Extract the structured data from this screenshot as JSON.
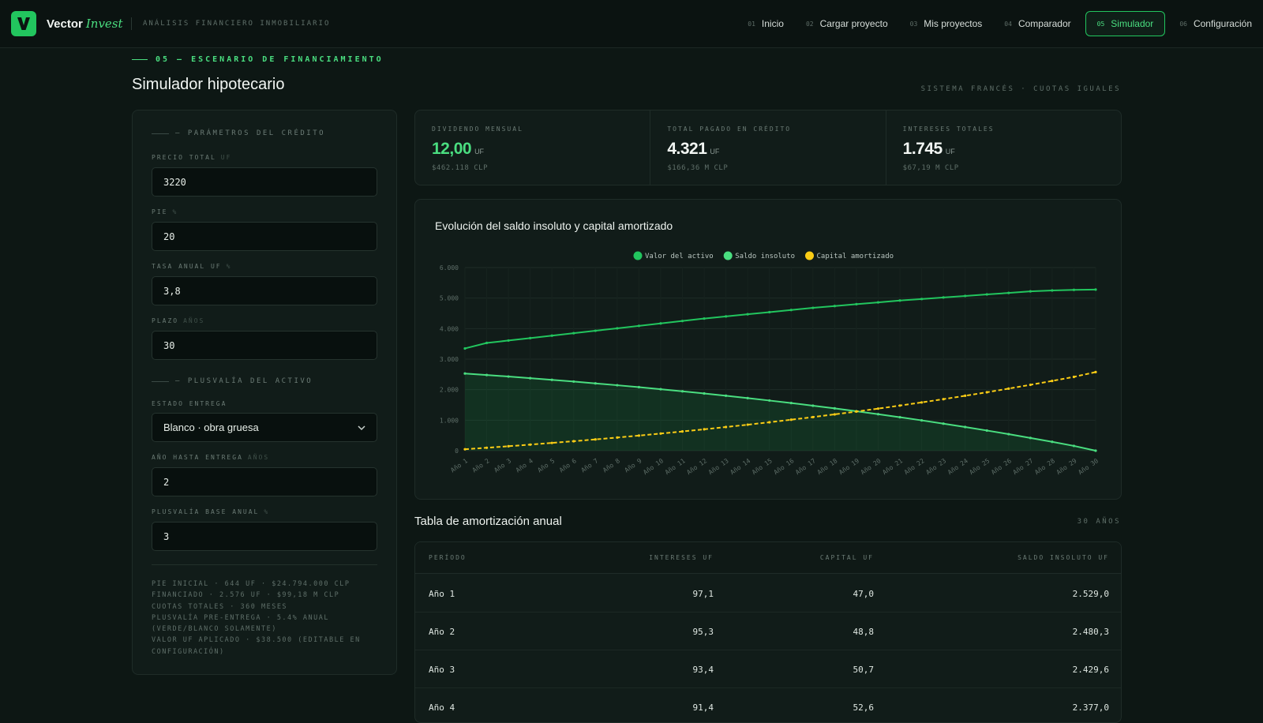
{
  "brand": {
    "name": "Vector",
    "script": "Invest",
    "subtitle": "ANÁLISIS FINANCIERO INMOBILIARIO"
  },
  "nav": [
    {
      "num": "01",
      "label": "Inicio",
      "active": false
    },
    {
      "num": "02",
      "label": "Cargar proyecto",
      "active": false
    },
    {
      "num": "03",
      "label": "Mis proyectos",
      "active": false
    },
    {
      "num": "04",
      "label": "Comparador",
      "active": false
    },
    {
      "num": "05",
      "label": "Simulador",
      "active": true
    },
    {
      "num": "06",
      "label": "Configuración",
      "active": false
    }
  ],
  "page": {
    "eyebrow": "05 — ESCENARIO DE FINANCIAMIENTO",
    "title": "Simulador hipotecario",
    "meta": "SISTEMA FRANCÉS · CUOTAS IGUALES"
  },
  "params": {
    "credit_heading": "— PARÁMETROS DEL CRÉDITO",
    "precio_label": "PRECIO TOTAL",
    "precio_unit": "UF",
    "precio_value": "3220",
    "pie_label": "PIE",
    "pie_unit": "%",
    "pie_value": "20",
    "tasa_label": "TASA ANUAL UF",
    "tasa_unit": "%",
    "tasa_value": "3,8",
    "plazo_label": "PLAZO",
    "plazo_unit": "AÑOS",
    "plazo_value": "30",
    "plusvalia_heading": "— PLUSVALÍA DEL ACTIVO",
    "estado_label": "ESTADO ENTREGA",
    "estado_value": "Blanco · obra gruesa",
    "anio_label": "AÑO HASTA ENTREGA",
    "anio_unit": "AÑOS",
    "anio_value": "2",
    "base_label": "PLUSVALÍA BASE ANUAL",
    "base_unit": "%",
    "base_value": "3",
    "summary": [
      "PIE INICIAL · 644 UF · $24.794.000 CLP",
      "FINANCIADO · 2.576 UF · $99,18 M CLP",
      "CUOTAS TOTALES · 360 MESES",
      "PLUSVALÍA PRE-ENTREGA · 5.4% ANUAL",
      "(VERDE/BLANCO SOLAMENTE)",
      "VALOR UF APLICADO · $38.500 (EDITABLE EN",
      "CONFIGURACIÓN)"
    ]
  },
  "stats": [
    {
      "label": "DIVIDENDO MENSUAL",
      "value": "12,00",
      "unit": "UF",
      "sub": "$462.118 CLP",
      "green": true
    },
    {
      "label": "TOTAL PAGADO EN CRÉDITO",
      "value": "4.321",
      "unit": "UF",
      "sub": "$166,36 M CLP",
      "green": false
    },
    {
      "label": "INTERESES TOTALES",
      "value": "1.745",
      "unit": "UF",
      "sub": "$67,19 M CLP",
      "green": false
    }
  ],
  "chart_data": {
    "type": "line",
    "title": "Evolución del saldo insoluto y capital amortizado",
    "legend_placement": "top-center",
    "grid": true,
    "ylim": [
      0,
      6000
    ],
    "yticks": [
      "0",
      "1.000",
      "2.000",
      "3.000",
      "4.000",
      "5.000",
      "6.000"
    ],
    "ytick_values": [
      0,
      1000,
      2000,
      3000,
      4000,
      5000,
      6000
    ],
    "categories": [
      "Año 1",
      "Año 2",
      "Año 3",
      "Año 4",
      "Año 5",
      "Año 6",
      "Año 7",
      "Año 8",
      "Año 9",
      "Año 10",
      "Año 11",
      "Año 12",
      "Año 13",
      "Año 14",
      "Año 15",
      "Año 16",
      "Año 17",
      "Año 18",
      "Año 19",
      "Año 20",
      "Año 21",
      "Año 22",
      "Año 23",
      "Año 24",
      "Año 25",
      "Año 26",
      "Año 27",
      "Año 28",
      "Año 29",
      "Año 30"
    ],
    "series": [
      {
        "name": "Valor del activo",
        "color": "#22c55e",
        "style": "solid",
        "values": [
          3350,
          3530,
          3610,
          3690,
          3770,
          3850,
          3930,
          4010,
          4090,
          4170,
          4250,
          4330,
          4400,
          4470,
          4540,
          4610,
          4680,
          4740,
          4800,
          4860,
          4920,
          4970,
          5020,
          5070,
          5120,
          5170,
          5220,
          5250,
          5270,
          5280
        ]
      },
      {
        "name": "Saldo insoluto",
        "color": "#4ade80",
        "style": "solid",
        "filled": true,
        "values": [
          2529,
          2480,
          2430,
          2377,
          2322,
          2265,
          2206,
          2145,
          2081,
          2015,
          1946,
          1875,
          1801,
          1724,
          1644,
          1561,
          1475,
          1386,
          1293,
          1197,
          1097,
          994,
          887,
          776,
          661,
          542,
          418,
          290,
          157,
          0
        ]
      },
      {
        "name": "Capital amortizado",
        "color": "#facc15",
        "style": "dashed",
        "values": [
          47,
          96,
          146,
          199,
          254,
          311,
          370,
          431,
          495,
          561,
          630,
          701,
          775,
          852,
          932,
          1015,
          1101,
          1190,
          1283,
          1379,
          1479,
          1582,
          1689,
          1800,
          1915,
          2034,
          2158,
          2286,
          2419,
          2576
        ]
      }
    ]
  },
  "table": {
    "title": "Tabla de amortización anual",
    "meta": "30 AÑOS",
    "headers": [
      "PERÍODO",
      "INTERESES UF",
      "CAPITAL UF",
      "SALDO INSOLUTO UF"
    ],
    "rows": [
      [
        "Año 1",
        "97,1",
        "47,0",
        "2.529,0"
      ],
      [
        "Año 2",
        "95,3",
        "48,8",
        "2.480,3"
      ],
      [
        "Año 3",
        "93,4",
        "50,7",
        "2.429,6"
      ],
      [
        "Año 4",
        "91,4",
        "52,6",
        "2.377,0"
      ]
    ]
  }
}
